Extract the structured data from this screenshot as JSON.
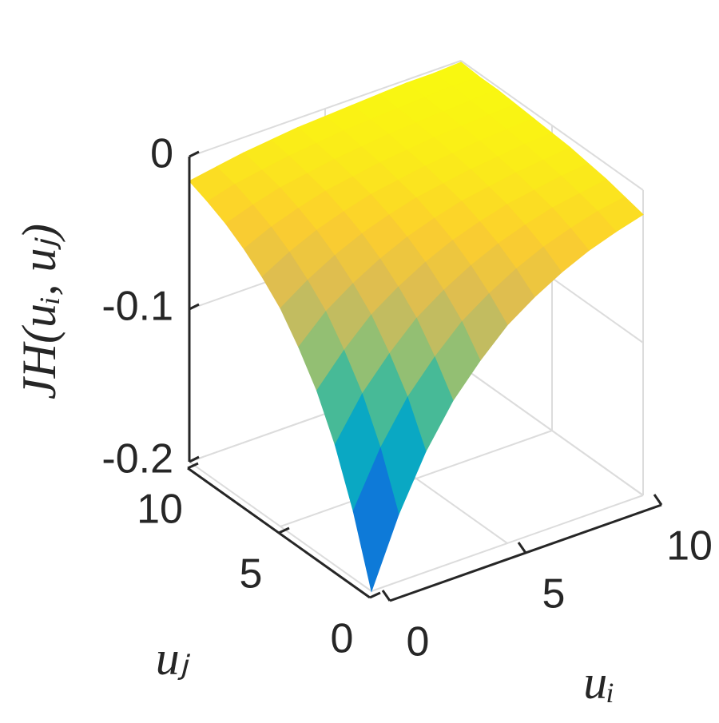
{
  "chart_data": {
    "type": "surface",
    "zlabel": "JH(uᵢ, uⱼ)",
    "xlabel": "uᵢ",
    "ylabel": "uⱼ",
    "x": [
      0,
      1,
      2,
      3,
      4,
      5,
      6,
      7,
      8,
      9,
      10
    ],
    "y": [
      0,
      1,
      2,
      3,
      4,
      5,
      6,
      7,
      8,
      9,
      10
    ],
    "z": [
      [
        -0.2,
        -0.156,
        -0.121,
        -0.094,
        -0.074,
        -0.057,
        -0.045,
        -0.035,
        -0.027,
        -0.021,
        -0.016
      ],
      [
        -0.156,
        -0.121,
        -0.094,
        -0.074,
        -0.057,
        -0.045,
        -0.035,
        -0.027,
        -0.021,
        -0.016,
        -0.013
      ],
      [
        -0.121,
        -0.094,
        -0.074,
        -0.057,
        -0.045,
        -0.035,
        -0.027,
        -0.021,
        -0.016,
        -0.013,
        -0.01
      ],
      [
        -0.094,
        -0.074,
        -0.057,
        -0.045,
        -0.035,
        -0.027,
        -0.021,
        -0.016,
        -0.013,
        -0.01,
        -0.008
      ],
      [
        -0.074,
        -0.057,
        -0.045,
        -0.035,
        -0.027,
        -0.021,
        -0.016,
        -0.013,
        -0.01,
        -0.008,
        -0.006
      ],
      [
        -0.057,
        -0.045,
        -0.035,
        -0.027,
        -0.021,
        -0.016,
        -0.013,
        -0.01,
        -0.008,
        -0.006,
        -0.005
      ],
      [
        -0.045,
        -0.035,
        -0.027,
        -0.021,
        -0.016,
        -0.013,
        -0.01,
        -0.008,
        -0.006,
        -0.005,
        -0.004
      ],
      [
        -0.035,
        -0.027,
        -0.021,
        -0.016,
        -0.013,
        -0.01,
        -0.008,
        -0.006,
        -0.005,
        -0.004,
        -0.003
      ],
      [
        -0.027,
        -0.021,
        -0.016,
        -0.013,
        -0.01,
        -0.008,
        -0.006,
        -0.005,
        -0.004,
        -0.003,
        -0.002
      ],
      [
        -0.021,
        -0.016,
        -0.013,
        -0.01,
        -0.008,
        -0.006,
        -0.005,
        -0.004,
        -0.003,
        -0.002,
        -0.002
      ],
      [
        -0.016,
        -0.013,
        -0.01,
        -0.008,
        -0.006,
        -0.005,
        -0.004,
        -0.003,
        -0.002,
        -0.002,
        -0.001
      ]
    ],
    "xlim": [
      0,
      10
    ],
    "ylim": [
      0,
      10
    ],
    "zlim": [
      -0.2,
      0
    ],
    "xticks": [
      0,
      5,
      10
    ],
    "yticks": [
      0,
      5,
      10
    ],
    "zticks": [
      -0.2,
      -0.1,
      0
    ],
    "colormap": "parula",
    "grid": true
  }
}
